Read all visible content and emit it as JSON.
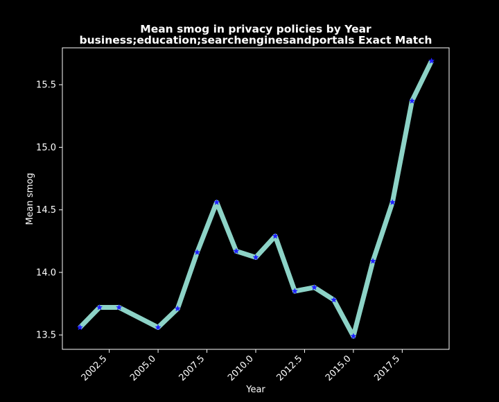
{
  "chart_data": {
    "type": "line",
    "title_line1": "Mean smog in privacy policies by Year",
    "title_line2": "business;education;searchenginesandportals Exact Match",
    "xlabel": "Year",
    "ylabel": "Mean smog",
    "x": [
      2001,
      2002,
      2003,
      2005,
      2006,
      2007,
      2008,
      2009,
      2010,
      2011,
      2012,
      2013,
      2014,
      2015,
      2016,
      2017,
      2018,
      2019
    ],
    "y": [
      13.56,
      13.72,
      13.72,
      13.56,
      13.71,
      14.16,
      14.56,
      14.17,
      14.12,
      14.29,
      13.85,
      13.88,
      13.78,
      13.49,
      14.09,
      14.56,
      15.37,
      15.69
    ],
    "xlim": [
      2000.1,
      2019.9
    ],
    "ylim": [
      13.385,
      15.795
    ],
    "xticks": [
      2002.5,
      2005.0,
      2007.5,
      2010.0,
      2012.5,
      2015.0,
      2017.5
    ],
    "xtick_labels": [
      "2002.5",
      "2005.0",
      "2007.5",
      "2010.0",
      "2012.5",
      "2015.0",
      "2017.5"
    ],
    "yticks": [
      13.5,
      14.0,
      14.5,
      15.0,
      15.5
    ],
    "ytick_labels": [
      "13.5",
      "14.0",
      "14.5",
      "15.0",
      "15.5"
    ],
    "grid": false,
    "colors": {
      "background": "#000000",
      "line": "#8dd3c7",
      "marker": "#1f1fff",
      "axes": "#ffffff",
      "text": "#ffffff"
    },
    "marker": "star"
  }
}
